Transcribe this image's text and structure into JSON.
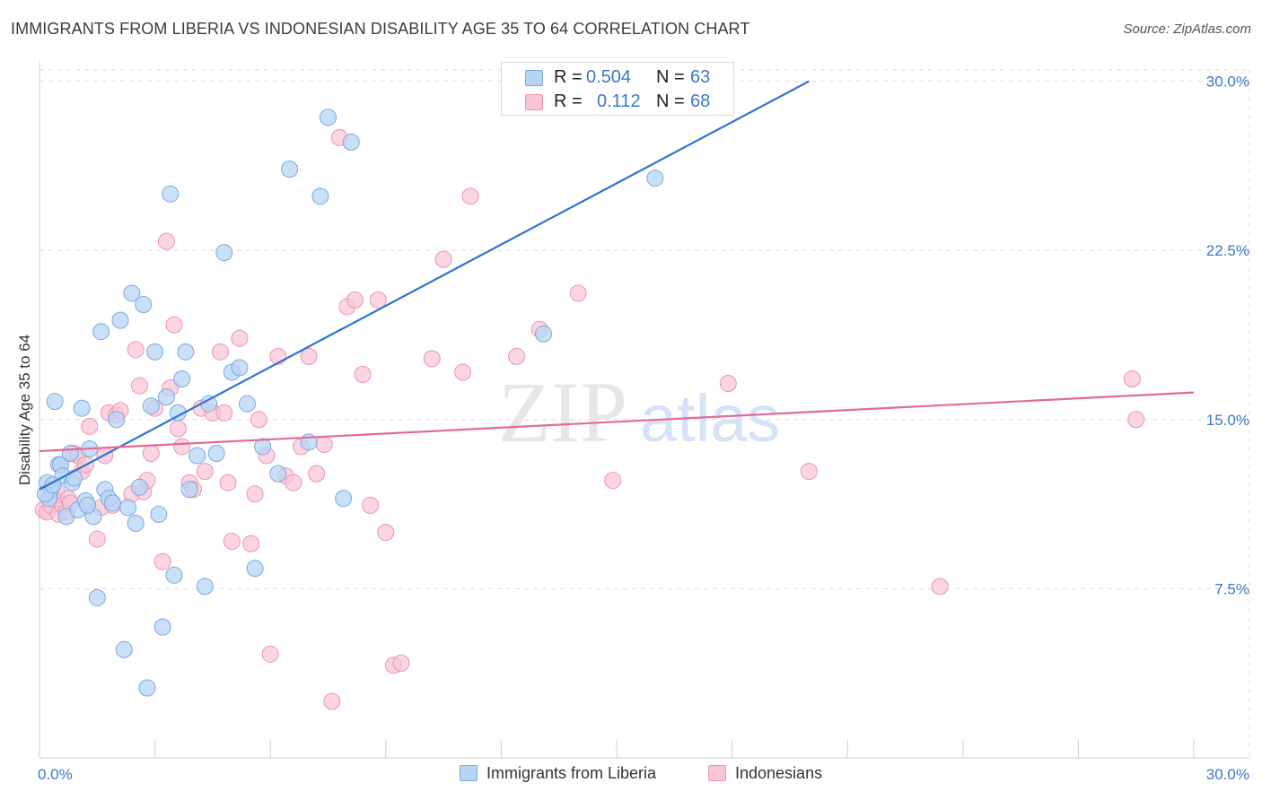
{
  "title": "IMMIGRANTS FROM LIBERIA VS INDONESIAN DISABILITY AGE 35 TO 64 CORRELATION CHART",
  "source": "Source: ZipAtlas.com",
  "watermark": {
    "zip": "ZIP",
    "atlas": "atlas"
  },
  "legend": {
    "rows": [
      {
        "r_label": "R =",
        "r_value": "0.504",
        "n_label": "N =",
        "n_value": "63"
      },
      {
        "r_label": "R =",
        "r_value": "0.112",
        "n_label": "N =",
        "n_value": "68"
      }
    ]
  },
  "colors": {
    "liberia_fill": "#b8d4f5",
    "liberia_stroke": "#7aa8e0",
    "liberia_line": "#2e75d0",
    "indonesian_fill": "#f9c5d6",
    "indonesian_stroke": "#ea95b2",
    "indonesian_line": "#e36b96",
    "tick_label": "#3a78c9",
    "grid": "#dcdcdc"
  },
  "chart_data": {
    "type": "scatter",
    "title": "IMMIGRANTS FROM LIBERIA VS INDONESIAN DISABILITY AGE 35 TO 64 CORRELATION CHART",
    "xlabel": "",
    "ylabel": "Disability Age 35 to 64",
    "xlim": [
      0,
      30
    ],
    "ylim": [
      0,
      30.5
    ],
    "x_tick_labels": [
      "0.0%",
      "30.0%"
    ],
    "y_ticks": [
      7.5,
      15.0,
      22.5,
      30.0
    ],
    "y_tick_labels": [
      "7.5%",
      "15.0%",
      "22.5%",
      "30.0%"
    ],
    "series": [
      {
        "name": "Immigrants from Liberia",
        "trend": {
          "x0": 0.0,
          "y0": 11.9,
          "x1": 20.0,
          "y1": 30.0
        },
        "points": [
          [
            0.2,
            12.2
          ],
          [
            0.3,
            11.9
          ],
          [
            0.25,
            11.5
          ],
          [
            0.4,
            15.8
          ],
          [
            0.5,
            13.0
          ],
          [
            0.55,
            13.0
          ],
          [
            0.6,
            12.5
          ],
          [
            0.7,
            10.7
          ],
          [
            0.8,
            13.5
          ],
          [
            0.85,
            12.2
          ],
          [
            0.9,
            12.4
          ],
          [
            1.0,
            11.0
          ],
          [
            1.1,
            15.5
          ],
          [
            1.2,
            11.4
          ],
          [
            1.3,
            13.7
          ],
          [
            1.4,
            10.7
          ],
          [
            1.5,
            7.1
          ],
          [
            1.6,
            18.9
          ],
          [
            1.7,
            11.9
          ],
          [
            1.8,
            11.5
          ],
          [
            1.9,
            11.3
          ],
          [
            2.0,
            15.0
          ],
          [
            2.1,
            19.4
          ],
          [
            2.2,
            4.8
          ],
          [
            2.3,
            11.1
          ],
          [
            2.4,
            20.6
          ],
          [
            2.5,
            10.4
          ],
          [
            2.6,
            12.0
          ],
          [
            2.7,
            20.1
          ],
          [
            2.8,
            3.1
          ],
          [
            2.9,
            15.6
          ],
          [
            3.0,
            18.0
          ],
          [
            3.1,
            10.8
          ],
          [
            3.2,
            5.8
          ],
          [
            3.3,
            16.0
          ],
          [
            3.4,
            25.0
          ],
          [
            3.5,
            8.1
          ],
          [
            3.6,
            15.3
          ],
          [
            3.7,
            16.8
          ],
          [
            3.8,
            18.0
          ],
          [
            3.9,
            11.9
          ],
          [
            4.1,
            13.4
          ],
          [
            4.3,
            7.6
          ],
          [
            4.4,
            15.7
          ],
          [
            4.6,
            13.5
          ],
          [
            4.8,
            22.4
          ],
          [
            5.0,
            17.1
          ],
          [
            5.2,
            17.3
          ],
          [
            5.4,
            15.7
          ],
          [
            5.6,
            8.4
          ],
          [
            5.8,
            13.8
          ],
          [
            6.2,
            12.6
          ],
          [
            6.5,
            26.1
          ],
          [
            7.0,
            14.0
          ],
          [
            7.3,
            24.9
          ],
          [
            7.5,
            28.4
          ],
          [
            7.9,
            11.5
          ],
          [
            8.1,
            27.3
          ],
          [
            13.1,
            18.8
          ],
          [
            16.0,
            25.7
          ],
          [
            0.15,
            11.7
          ],
          [
            0.35,
            12.1
          ],
          [
            1.25,
            11.2
          ]
        ]
      },
      {
        "name": "Indonesians",
        "trend": {
          "x0": 0.0,
          "y0": 13.6,
          "x1": 30.0,
          "y1": 16.2
        },
        "points": [
          [
            0.1,
            11.0
          ],
          [
            0.2,
            10.9
          ],
          [
            0.3,
            11.2
          ],
          [
            0.35,
            11.5
          ],
          [
            0.45,
            11.8
          ],
          [
            0.5,
            10.8
          ],
          [
            0.6,
            11.2
          ],
          [
            0.7,
            10.9
          ],
          [
            0.75,
            11.5
          ],
          [
            0.8,
            11.3
          ],
          [
            0.9,
            13.5
          ],
          [
            1.0,
            13.4
          ],
          [
            1.1,
            12.7
          ],
          [
            1.2,
            13.0
          ],
          [
            1.3,
            14.7
          ],
          [
            1.5,
            9.7
          ],
          [
            1.6,
            11.1
          ],
          [
            1.7,
            13.4
          ],
          [
            1.8,
            15.3
          ],
          [
            1.9,
            11.2
          ],
          [
            2.0,
            15.2
          ],
          [
            2.1,
            15.4
          ],
          [
            2.4,
            11.7
          ],
          [
            2.5,
            18.1
          ],
          [
            2.6,
            16.5
          ],
          [
            2.7,
            11.8
          ],
          [
            2.8,
            12.3
          ],
          [
            2.9,
            13.5
          ],
          [
            3.0,
            15.5
          ],
          [
            3.2,
            8.7
          ],
          [
            3.3,
            22.9
          ],
          [
            3.5,
            19.2
          ],
          [
            3.6,
            14.6
          ],
          [
            3.7,
            13.8
          ],
          [
            3.9,
            12.2
          ],
          [
            4.0,
            11.9
          ],
          [
            4.2,
            15.5
          ],
          [
            4.3,
            12.7
          ],
          [
            4.5,
            15.3
          ],
          [
            4.7,
            18.0
          ],
          [
            4.8,
            15.3
          ],
          [
            4.9,
            12.2
          ],
          [
            5.0,
            9.6
          ],
          [
            5.2,
            18.6
          ],
          [
            5.5,
            9.5
          ],
          [
            5.6,
            11.7
          ],
          [
            5.7,
            15.0
          ],
          [
            5.9,
            13.4
          ],
          [
            6.2,
            17.8
          ],
          [
            6.4,
            12.5
          ],
          [
            6.6,
            12.2
          ],
          [
            6.8,
            13.8
          ],
          [
            7.0,
            17.8
          ],
          [
            7.2,
            12.6
          ],
          [
            7.4,
            13.9
          ],
          [
            7.6,
            2.5
          ],
          [
            7.8,
            27.5
          ],
          [
            8.0,
            20.0
          ],
          [
            8.2,
            20.3
          ],
          [
            8.4,
            17.0
          ],
          [
            8.6,
            11.2
          ],
          [
            8.8,
            20.3
          ],
          [
            9.0,
            10.0
          ],
          [
            9.2,
            4.1
          ],
          [
            9.4,
            4.2
          ],
          [
            11.2,
            24.9
          ],
          [
            12.4,
            17.8
          ],
          [
            28.4,
            16.8
          ]
        ]
      }
    ]
  },
  "extra_indonesian_points": [
    [
      10.2,
      17.7
    ],
    [
      10.5,
      22.1
    ],
    [
      11.0,
      17.1
    ],
    [
      13.0,
      19.0
    ],
    [
      14.0,
      20.6
    ],
    [
      14.9,
      12.3
    ],
    [
      17.9,
      16.6
    ],
    [
      20.0,
      12.7
    ],
    [
      23.4,
      7.6
    ],
    [
      28.5,
      15.0
    ],
    [
      6.0,
      4.6
    ],
    [
      3.4,
      16.4
    ]
  ],
  "bottom_legend": {
    "liberia_label": "Immigrants from Liberia",
    "indonesian_label": "Indonesians"
  }
}
